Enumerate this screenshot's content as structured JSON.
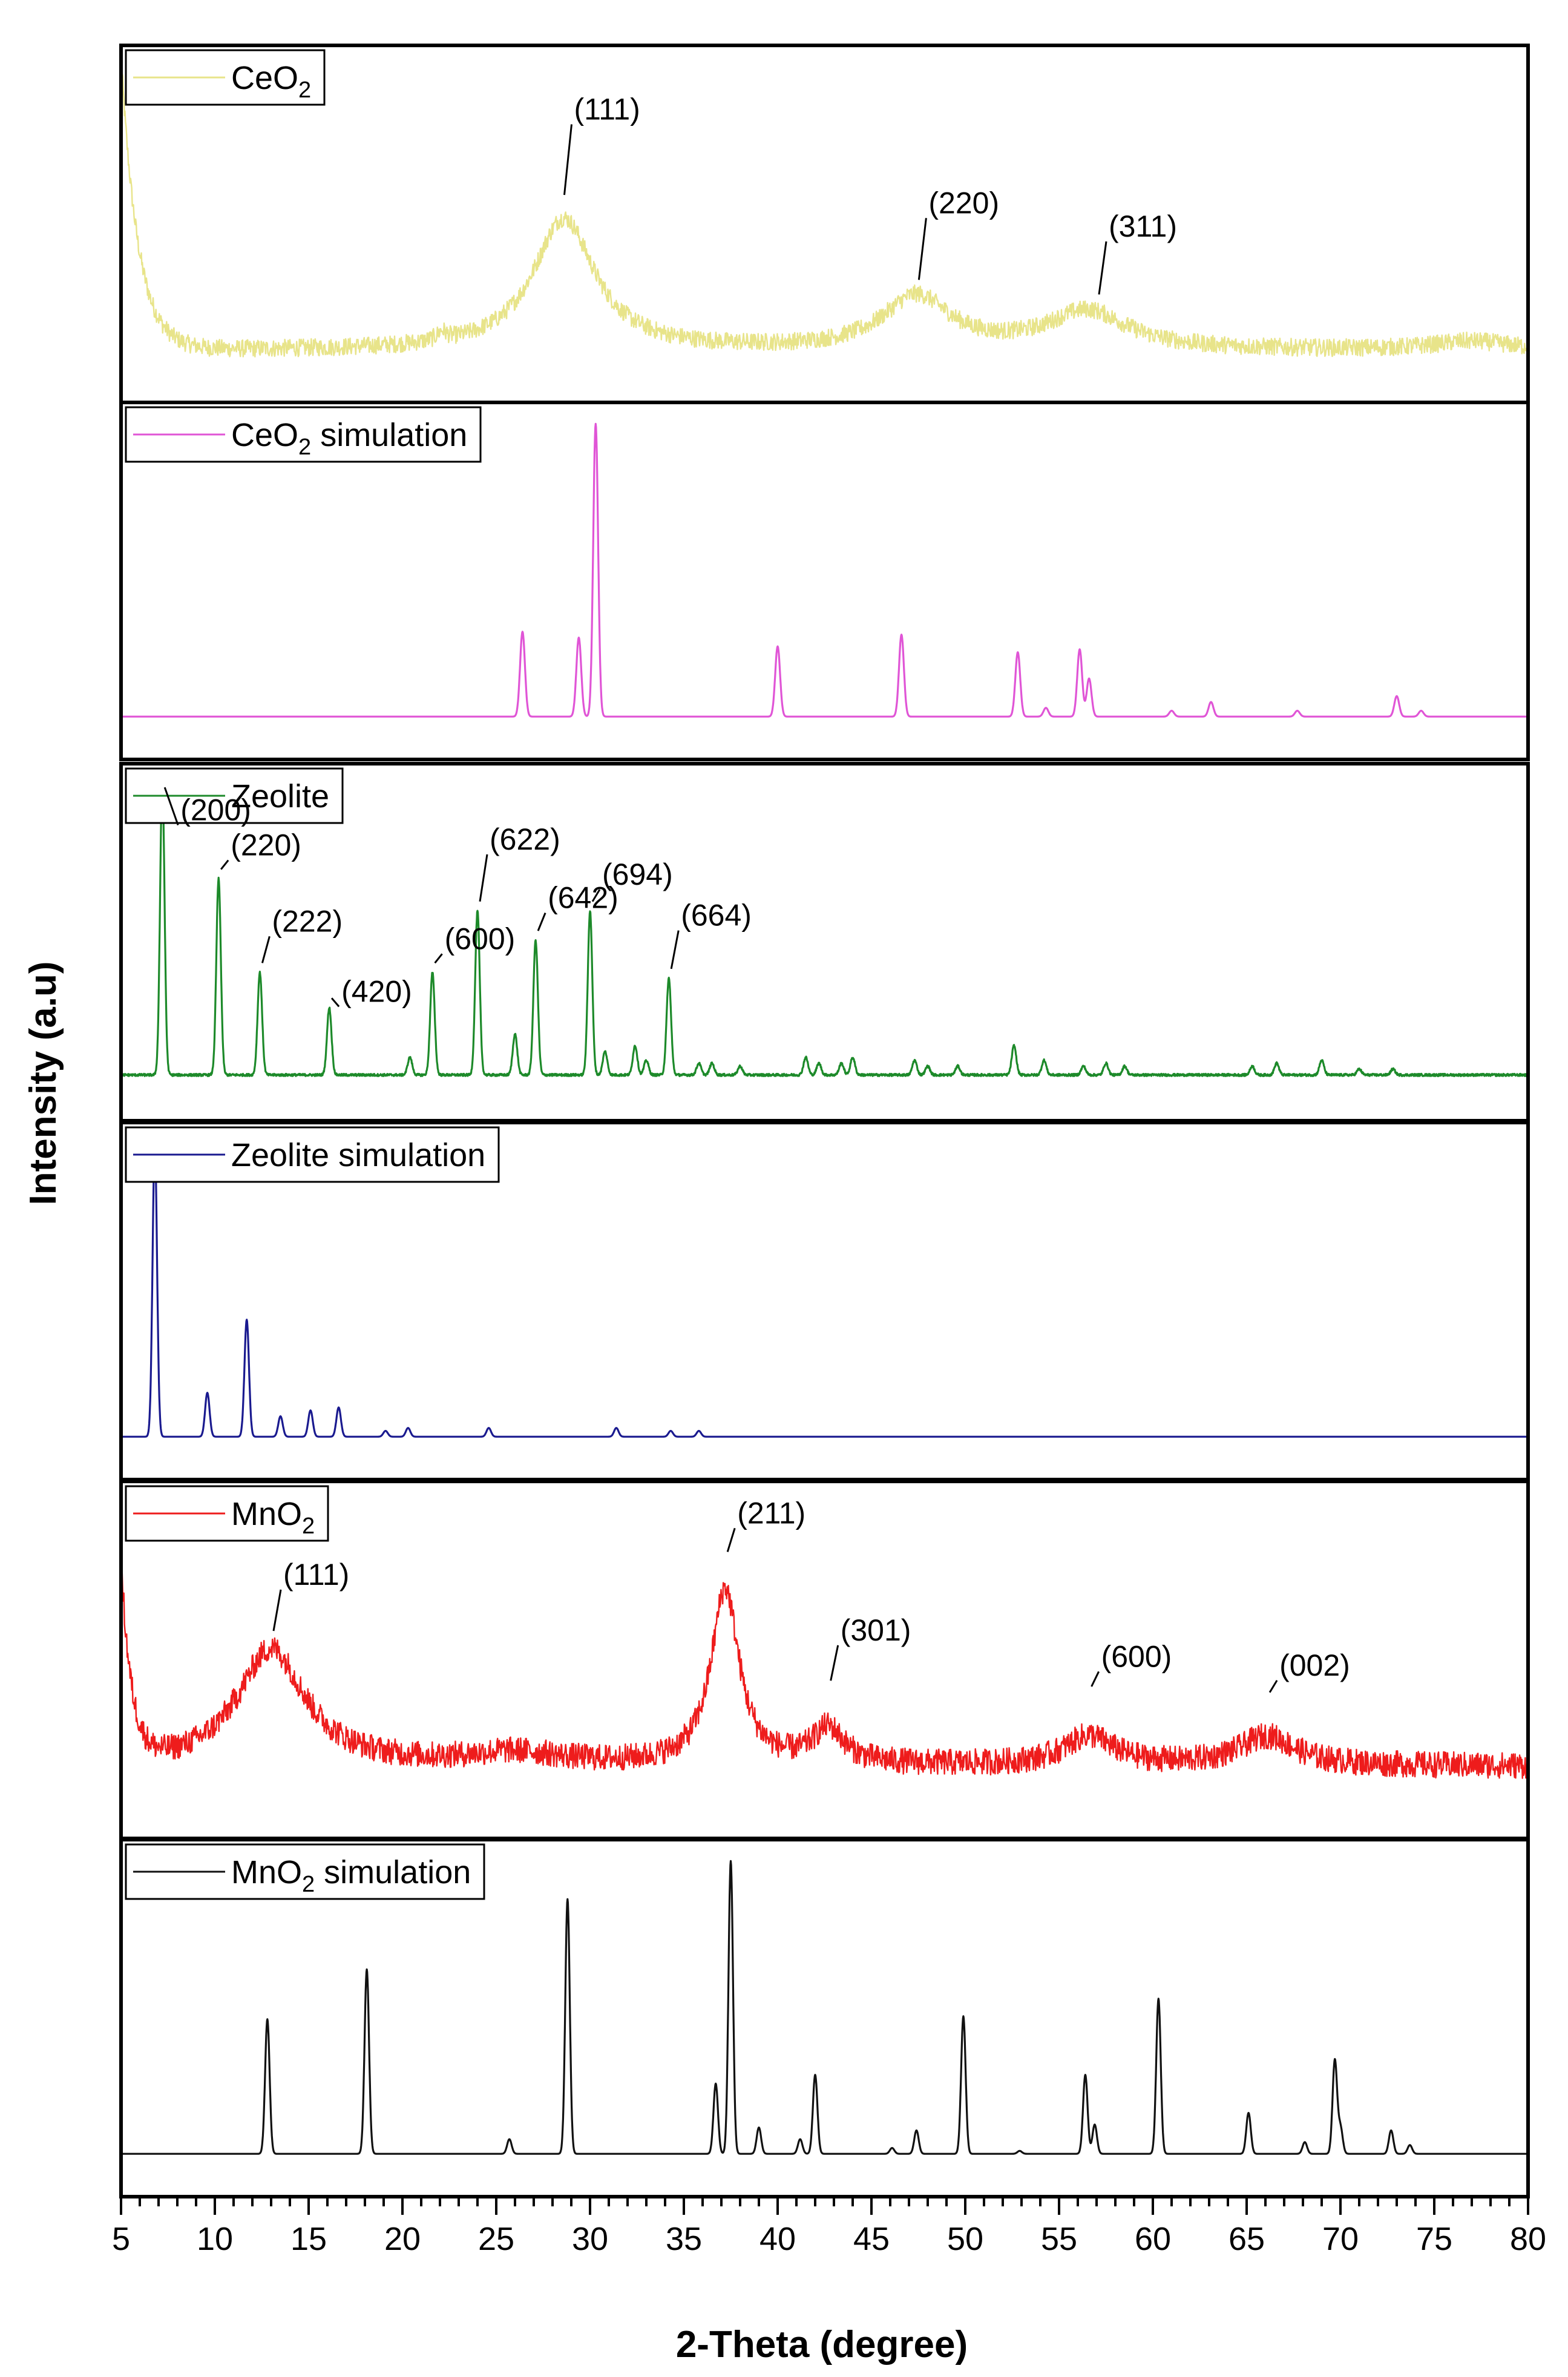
{
  "chart_data": {
    "type": "line",
    "title": "",
    "xlabel": "2-Theta (degree)",
    "ylabel": "Intensity (a.u)",
    "xlim": [
      5,
      80
    ],
    "xticks": [
      "5",
      "10",
      "15",
      "20",
      "25",
      "30",
      "35",
      "40",
      "45",
      "50",
      "55",
      "60",
      "65",
      "70",
      "75",
      "80"
    ],
    "grid": false,
    "stacked_panels": true,
    "series": [
      {
        "name": "CeO2",
        "legend_main": "CeO",
        "legend_sub": "2",
        "legend_tail": "",
        "color": "#e8e48a",
        "kind": "broad",
        "noise": 0.03,
        "baseline": 0.03,
        "decay": {
          "amp": 1.0,
          "rate": 0.9
        },
        "peaks": [
          {
            "x": 28.6,
            "h": 0.45,
            "w": 2.0
          },
          {
            "x": 47.4,
            "h": 0.18,
            "w": 2.2
          },
          {
            "x": 56.5,
            "h": 0.13,
            "w": 2.6
          },
          {
            "x": 22.1,
            "h": 0.03,
            "w": 0.3
          },
          {
            "x": 77.0,
            "h": 0.03,
            "w": 2.5
          }
        ],
        "annotations": [
          {
            "x": 28.5,
            "label": "(111)",
            "level": 0.55,
            "text_level": 0.82
          },
          {
            "x": 47.4,
            "label": "(220)",
            "level": 0.26,
            "text_level": 0.5
          },
          {
            "x": 57.0,
            "label": "(311)",
            "level": 0.21,
            "text_level": 0.42
          }
        ]
      },
      {
        "name": "CeO2 simulation",
        "legend_main": "CeO",
        "legend_sub": "2",
        "legend_tail": " simulation",
        "color": "#e055d6",
        "kind": "sharp",
        "noise": 0,
        "baseline": 0,
        "peaks": [
          {
            "x": 26.4,
            "h": 0.29,
            "w": 0.13
          },
          {
            "x": 29.4,
            "h": 0.27,
            "w": 0.13
          },
          {
            "x": 30.3,
            "h": 1.0,
            "w": 0.13
          },
          {
            "x": 40.0,
            "h": 0.24,
            "w": 0.13
          },
          {
            "x": 46.6,
            "h": 0.28,
            "w": 0.13
          },
          {
            "x": 52.8,
            "h": 0.22,
            "w": 0.13
          },
          {
            "x": 54.3,
            "h": 0.03,
            "w": 0.13
          },
          {
            "x": 56.1,
            "h": 0.23,
            "w": 0.13
          },
          {
            "x": 56.6,
            "h": 0.13,
            "w": 0.13
          },
          {
            "x": 61.0,
            "h": 0.02,
            "w": 0.13
          },
          {
            "x": 63.1,
            "h": 0.05,
            "w": 0.13
          },
          {
            "x": 67.7,
            "h": 0.02,
            "w": 0.13
          },
          {
            "x": 73.0,
            "h": 0.07,
            "w": 0.13
          },
          {
            "x": 74.3,
            "h": 0.02,
            "w": 0.13
          }
        ],
        "annotations": []
      },
      {
        "name": "Zeolite",
        "legend_main": "Zeolite",
        "legend_sub": "",
        "legend_tail": "",
        "color": "#1d8a2a",
        "kind": "sharp",
        "noise": 0.004,
        "baseline": 0.01,
        "peaks": [
          {
            "x": 7.2,
            "h": 1.0,
            "w": 0.12
          },
          {
            "x": 10.2,
            "h": 0.67,
            "w": 0.12
          },
          {
            "x": 12.4,
            "h": 0.35,
            "w": 0.12
          },
          {
            "x": 16.1,
            "h": 0.23,
            "w": 0.12
          },
          {
            "x": 20.4,
            "h": 0.06,
            "w": 0.12
          },
          {
            "x": 21.6,
            "h": 0.35,
            "w": 0.12
          },
          {
            "x": 24.0,
            "h": 0.56,
            "w": 0.12
          },
          {
            "x": 26.0,
            "h": 0.14,
            "w": 0.12
          },
          {
            "x": 27.1,
            "h": 0.46,
            "w": 0.12
          },
          {
            "x": 30.0,
            "h": 0.56,
            "w": 0.12
          },
          {
            "x": 30.8,
            "h": 0.08,
            "w": 0.12
          },
          {
            "x": 32.4,
            "h": 0.1,
            "w": 0.12
          },
          {
            "x": 33.0,
            "h": 0.05,
            "w": 0.12
          },
          {
            "x": 34.2,
            "h": 0.33,
            "w": 0.12
          },
          {
            "x": 35.8,
            "h": 0.04,
            "w": 0.12
          },
          {
            "x": 36.5,
            "h": 0.04,
            "w": 0.12
          },
          {
            "x": 38.0,
            "h": 0.03,
            "w": 0.12
          },
          {
            "x": 41.5,
            "h": 0.06,
            "w": 0.12
          },
          {
            "x": 42.2,
            "h": 0.04,
            "w": 0.12
          },
          {
            "x": 43.4,
            "h": 0.04,
            "w": 0.12
          },
          {
            "x": 44.0,
            "h": 0.06,
            "w": 0.12
          },
          {
            "x": 47.3,
            "h": 0.05,
            "w": 0.12
          },
          {
            "x": 48.0,
            "h": 0.03,
            "w": 0.12
          },
          {
            "x": 49.6,
            "h": 0.03,
            "w": 0.12
          },
          {
            "x": 52.6,
            "h": 0.1,
            "w": 0.12
          },
          {
            "x": 54.2,
            "h": 0.05,
            "w": 0.12
          },
          {
            "x": 56.3,
            "h": 0.03,
            "w": 0.12
          },
          {
            "x": 57.5,
            "h": 0.04,
            "w": 0.12
          },
          {
            "x": 58.5,
            "h": 0.03,
            "w": 0.12
          },
          {
            "x": 65.3,
            "h": 0.03,
            "w": 0.12
          },
          {
            "x": 66.6,
            "h": 0.04,
            "w": 0.12
          },
          {
            "x": 69.0,
            "h": 0.05,
            "w": 0.12
          },
          {
            "x": 71.0,
            "h": 0.02,
            "w": 0.12
          },
          {
            "x": 72.8,
            "h": 0.02,
            "w": 0.12
          }
        ],
        "annotations": [
          {
            "x": 7.2,
            "label": "(200)",
            "level": 0.98,
            "text_level": 0.88,
            "dx": 0.5
          },
          {
            "x": 10.2,
            "label": "(220)",
            "level": 0.7,
            "text_level": 0.76
          },
          {
            "x": 12.4,
            "label": "(222)",
            "level": 0.38,
            "text_level": 0.5
          },
          {
            "x": 16.1,
            "label": "(420)",
            "level": 0.26,
            "text_level": 0.26
          },
          {
            "x": 21.6,
            "label": "(600)",
            "level": 0.38,
            "text_level": 0.44
          },
          {
            "x": 24.0,
            "label": "(622)",
            "level": 0.59,
            "text_level": 0.78
          },
          {
            "x": 27.1,
            "label": "(642)",
            "level": 0.49,
            "text_level": 0.58
          },
          {
            "x": 30.0,
            "label": "(694)",
            "level": 0.59,
            "text_level": 0.66
          },
          {
            "x": 34.2,
            "label": "(664)",
            "level": 0.36,
            "text_level": 0.52
          }
        ]
      },
      {
        "name": "Zeolite simulation",
        "legend_main": "Zeolite simulation",
        "legend_sub": "",
        "legend_tail": "",
        "color": "#1a1a8f",
        "kind": "sharp",
        "noise": 0,
        "baseline": 0,
        "peaks": [
          {
            "x": 6.8,
            "h": 1.0,
            "w": 0.12
          },
          {
            "x": 9.6,
            "h": 0.15,
            "w": 0.12
          },
          {
            "x": 11.7,
            "h": 0.4,
            "w": 0.12
          },
          {
            "x": 13.5,
            "h": 0.07,
            "w": 0.12
          },
          {
            "x": 15.1,
            "h": 0.09,
            "w": 0.12
          },
          {
            "x": 16.6,
            "h": 0.1,
            "w": 0.12
          },
          {
            "x": 19.1,
            "h": 0.02,
            "w": 0.12
          },
          {
            "x": 20.3,
            "h": 0.03,
            "w": 0.12
          },
          {
            "x": 24.6,
            "h": 0.03,
            "w": 0.12
          },
          {
            "x": 31.4,
            "h": 0.03,
            "w": 0.12
          },
          {
            "x": 34.3,
            "h": 0.02,
            "w": 0.12
          },
          {
            "x": 35.8,
            "h": 0.02,
            "w": 0.12
          }
        ],
        "annotations": []
      },
      {
        "name": "MnO2",
        "legend_main": "MnO",
        "legend_sub": "2",
        "legend_tail": "",
        "color": "#ee1c1c",
        "kind": "broad",
        "noise": 0.045,
        "baseline": 0.1,
        "decay": {
          "amp": 0.68,
          "rate": 0.55
        },
        "peaks": [
          {
            "x": 13.0,
            "h": 0.4,
            "w": 2.2
          },
          {
            "x": 37.2,
            "h": 0.6,
            "w": 0.9
          },
          {
            "x": 42.7,
            "h": 0.12,
            "w": 1.0
          },
          {
            "x": 56.6,
            "h": 0.1,
            "w": 1.6
          },
          {
            "x": 66.1,
            "h": 0.1,
            "w": 1.8
          },
          {
            "x": 26.0,
            "h": 0.04,
            "w": 3.0
          }
        ],
        "annotations": [
          {
            "x": 13.0,
            "label": "(111)",
            "level": 0.55,
            "text_level": 0.72
          },
          {
            "x": 37.2,
            "label": "(211)",
            "level": 0.82,
            "text_level": 0.93
          },
          {
            "x": 42.7,
            "label": "(301)",
            "level": 0.38,
            "text_level": 0.53
          },
          {
            "x": 56.6,
            "label": "(600)",
            "level": 0.36,
            "text_level": 0.44
          },
          {
            "x": 66.1,
            "label": "(002)",
            "level": 0.34,
            "text_level": 0.41
          }
        ]
      },
      {
        "name": "MnO2 simulation",
        "legend_main": "MnO",
        "legend_sub": "2",
        "legend_tail": " simulation",
        "color": "#111111",
        "kind": "sharp",
        "noise": 0,
        "baseline": 0,
        "peaks": [
          {
            "x": 12.8,
            "h": 0.46,
            "w": 0.12
          },
          {
            "x": 18.1,
            "h": 0.63,
            "w": 0.12
          },
          {
            "x": 25.7,
            "h": 0.05,
            "w": 0.12
          },
          {
            "x": 28.8,
            "h": 0.87,
            "w": 0.12
          },
          {
            "x": 36.7,
            "h": 0.24,
            "w": 0.12
          },
          {
            "x": 37.5,
            "h": 1.0,
            "w": 0.12
          },
          {
            "x": 39.0,
            "h": 0.09,
            "w": 0.12
          },
          {
            "x": 41.2,
            "h": 0.05,
            "w": 0.12
          },
          {
            "x": 42.0,
            "h": 0.27,
            "w": 0.12
          },
          {
            "x": 46.1,
            "h": 0.02,
            "w": 0.12
          },
          {
            "x": 47.4,
            "h": 0.08,
            "w": 0.12
          },
          {
            "x": 49.9,
            "h": 0.47,
            "w": 0.12
          },
          {
            "x": 52.9,
            "h": 0.01,
            "w": 0.12
          },
          {
            "x": 56.4,
            "h": 0.27,
            "w": 0.12
          },
          {
            "x": 56.9,
            "h": 0.1,
            "w": 0.12
          },
          {
            "x": 60.3,
            "h": 0.53,
            "w": 0.12
          },
          {
            "x": 65.1,
            "h": 0.14,
            "w": 0.12
          },
          {
            "x": 68.1,
            "h": 0.04,
            "w": 0.12
          },
          {
            "x": 69.7,
            "h": 0.32,
            "w": 0.12
          },
          {
            "x": 70.0,
            "h": 0.09,
            "w": 0.12
          },
          {
            "x": 72.7,
            "h": 0.08,
            "w": 0.12
          },
          {
            "x": 73.7,
            "h": 0.03,
            "w": 0.12
          }
        ],
        "annotations": []
      }
    ]
  }
}
